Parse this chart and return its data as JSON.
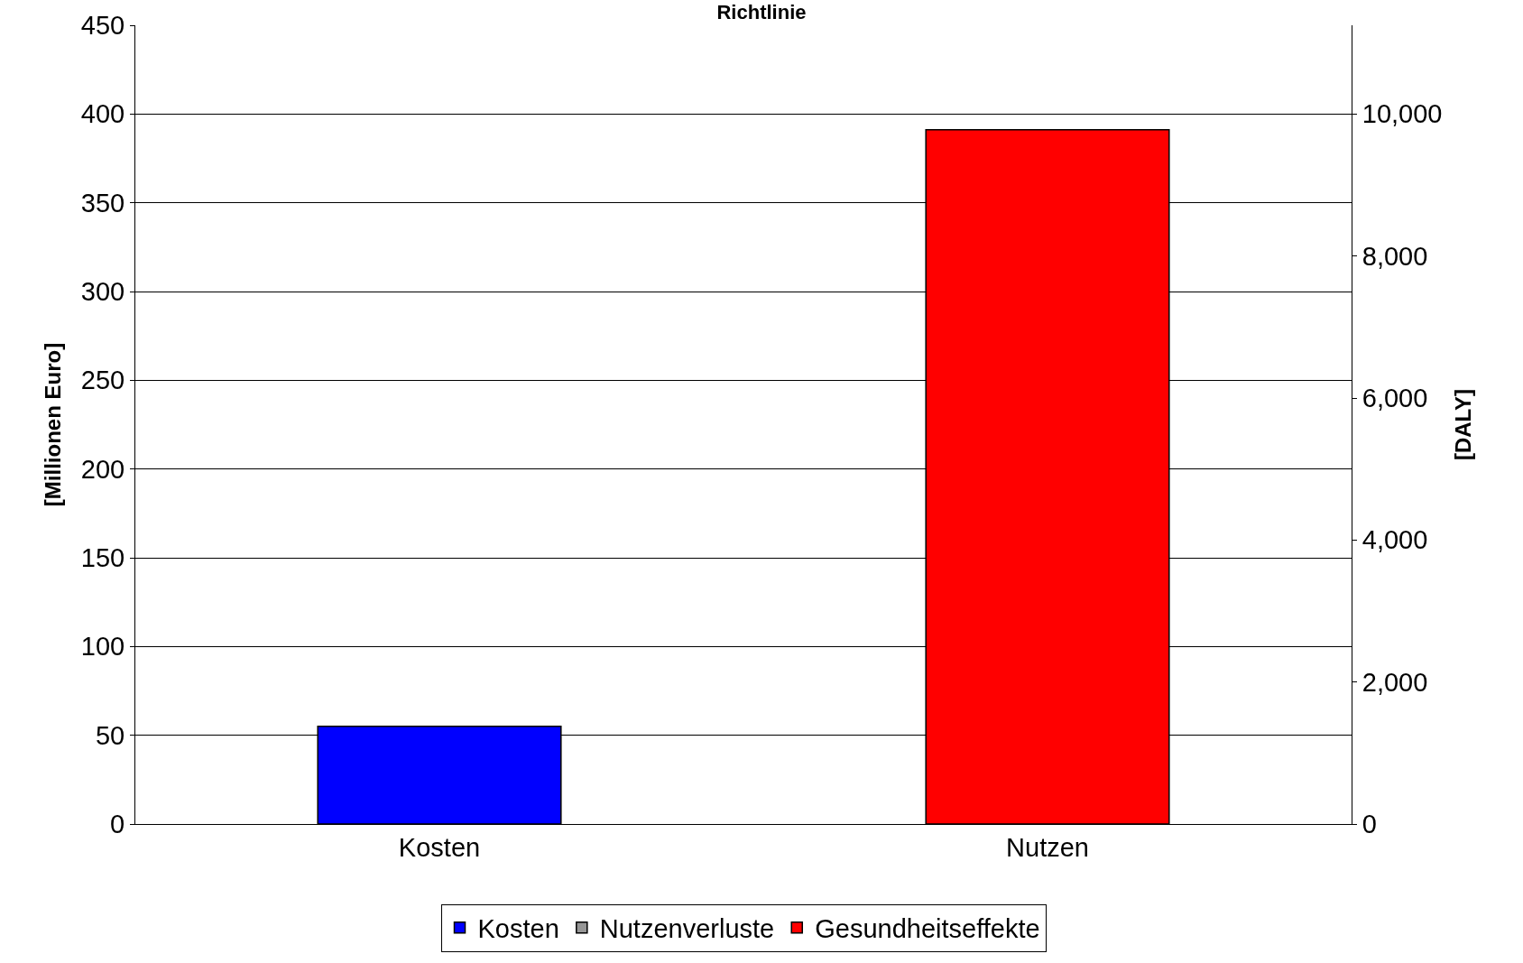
{
  "chart_data": {
    "type": "bar",
    "title": "Richtlinie",
    "ylabel": "[Millionen Euro]",
    "y2label": "[DALY]",
    "categories": [
      "Kosten",
      "Nutzen"
    ],
    "series": [
      {
        "name": "Kosten",
        "color": "#0000ff",
        "values": [
          55,
          null
        ]
      },
      {
        "name": "Nutzenverluste",
        "color": "#969696",
        "values": [
          null,
          null
        ]
      },
      {
        "name": "Gesundheitseffekte",
        "color": "#ff0000",
        "values": [
          null,
          9780
        ],
        "axis": "y2"
      }
    ],
    "ylim": [
      0,
      450
    ],
    "yticks": [
      0,
      50,
      100,
      150,
      200,
      250,
      300,
      350,
      400,
      450
    ],
    "y2lim": [
      0,
      11250
    ],
    "y2ticks": [
      {
        "value": 0,
        "label": "0"
      },
      {
        "value": 2000,
        "label": "2,000"
      },
      {
        "value": 4000,
        "label": "4,000"
      },
      {
        "value": 6000,
        "label": "6,000"
      },
      {
        "value": 8000,
        "label": "8,000"
      },
      {
        "value": 10000,
        "label": "10,000"
      }
    ],
    "grid": "y",
    "legend": "bottom"
  }
}
